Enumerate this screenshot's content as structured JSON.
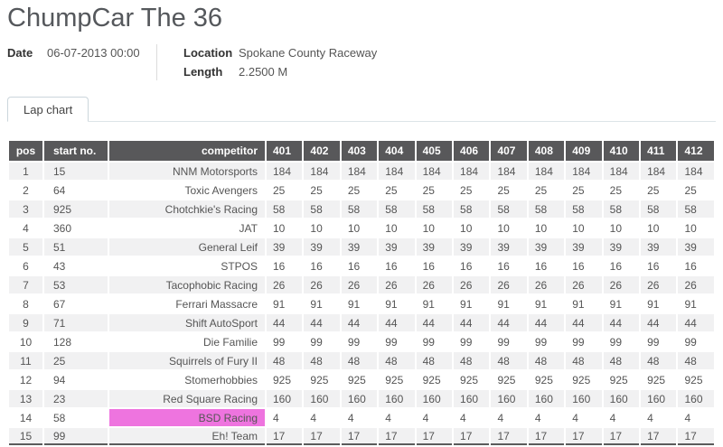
{
  "page": {
    "title": "ChumpCar The 36"
  },
  "meta": {
    "date_label": "Date",
    "date_value": "06-07-2013 00:00",
    "location_label": "Location",
    "location_value": "Spokane County Raceway",
    "length_label": "Length",
    "length_value": "2.2500 M"
  },
  "tabs": {
    "lap_chart_label": "Lap chart"
  },
  "table": {
    "columns": [
      "pos",
      "start no.",
      "competitor",
      "401",
      "402",
      "403",
      "404",
      "405",
      "406",
      "407",
      "408",
      "409",
      "410",
      "411",
      "412"
    ],
    "rows": [
      {
        "pos": "1",
        "start_no": "15",
        "competitor": "NNM Motorsports",
        "highlight": null,
        "laps": [
          "184",
          "184",
          "184",
          "184",
          "184",
          "184",
          "184",
          "184",
          "184",
          "184",
          "184",
          "184"
        ]
      },
      {
        "pos": "2",
        "start_no": "64",
        "competitor": "Toxic Avengers",
        "highlight": null,
        "laps": [
          "25",
          "25",
          "25",
          "25",
          "25",
          "25",
          "25",
          "25",
          "25",
          "25",
          "25",
          "25"
        ]
      },
      {
        "pos": "3",
        "start_no": "925",
        "competitor": "Chotchkie's Racing",
        "highlight": "laps",
        "laps": [
          "58",
          "58",
          "58",
          "58",
          "58",
          "58",
          "58",
          "58",
          "58",
          "58",
          "58",
          "58"
        ]
      },
      {
        "pos": "4",
        "start_no": "360",
        "competitor": "JAT",
        "highlight": null,
        "laps": [
          "10",
          "10",
          "10",
          "10",
          "10",
          "10",
          "10",
          "10",
          "10",
          "10",
          "10",
          "10"
        ]
      },
      {
        "pos": "5",
        "start_no": "51",
        "competitor": "General Leif",
        "highlight": null,
        "laps": [
          "39",
          "39",
          "39",
          "39",
          "39",
          "39",
          "39",
          "39",
          "39",
          "39",
          "39",
          "39"
        ]
      },
      {
        "pos": "6",
        "start_no": "43",
        "competitor": "STPOS",
        "highlight": null,
        "laps": [
          "16",
          "16",
          "16",
          "16",
          "16",
          "16",
          "16",
          "16",
          "16",
          "16",
          "16",
          "16"
        ]
      },
      {
        "pos": "7",
        "start_no": "53",
        "competitor": "Tacophobic Racing",
        "highlight": null,
        "laps": [
          "26",
          "26",
          "26",
          "26",
          "26",
          "26",
          "26",
          "26",
          "26",
          "26",
          "26",
          "26"
        ]
      },
      {
        "pos": "8",
        "start_no": "67",
        "competitor": "Ferrari Massacre",
        "highlight": null,
        "laps": [
          "91",
          "91",
          "91",
          "91",
          "91",
          "91",
          "91",
          "91",
          "91",
          "91",
          "91",
          "91"
        ]
      },
      {
        "pos": "9",
        "start_no": "71",
        "competitor": "Shift AutoSport",
        "highlight": null,
        "laps": [
          "44",
          "44",
          "44",
          "44",
          "44",
          "44",
          "44",
          "44",
          "44",
          "44",
          "44",
          "44"
        ]
      },
      {
        "pos": "10",
        "start_no": "128",
        "competitor": "Die Familie",
        "highlight": null,
        "laps": [
          "99",
          "99",
          "99",
          "99",
          "99",
          "99",
          "99",
          "99",
          "99",
          "99",
          "99",
          "99"
        ]
      },
      {
        "pos": "11",
        "start_no": "25",
        "competitor": "Squirrels of Fury II",
        "highlight": null,
        "laps": [
          "48",
          "48",
          "48",
          "48",
          "48",
          "48",
          "48",
          "48",
          "48",
          "48",
          "48",
          "48"
        ]
      },
      {
        "pos": "12",
        "start_no": "94",
        "competitor": "Stomerhobbies",
        "highlight": null,
        "laps": [
          "925",
          "925",
          "925",
          "925",
          "925",
          "925",
          "925",
          "925",
          "925",
          "925",
          "925",
          "925"
        ]
      },
      {
        "pos": "13",
        "start_no": "23",
        "competitor": "Red Square Racing",
        "highlight": null,
        "laps": [
          "160",
          "160",
          "160",
          "160",
          "160",
          "160",
          "160",
          "160",
          "160",
          "160",
          "160",
          "160"
        ]
      },
      {
        "pos": "14",
        "start_no": "58",
        "competitor": "BSD Racing",
        "highlight": "competitor",
        "laps": [
          "4",
          "4",
          "4",
          "4",
          "4",
          "4",
          "4",
          "4",
          "4",
          "4",
          "4",
          "4"
        ]
      },
      {
        "pos": "15",
        "start_no": "99",
        "competitor": "Eh! Team",
        "highlight": null,
        "laps": [
          "17",
          "17",
          "17",
          "17",
          "17",
          "17",
          "17",
          "17",
          "17",
          "17",
          "17",
          "17"
        ]
      }
    ]
  },
  "colors": {
    "header_bg": "#58585a",
    "stripe": "#f1f1f2",
    "highlight": "#ee74df",
    "tab_border": "#ccd6dc",
    "rule": "#dde4e8"
  }
}
